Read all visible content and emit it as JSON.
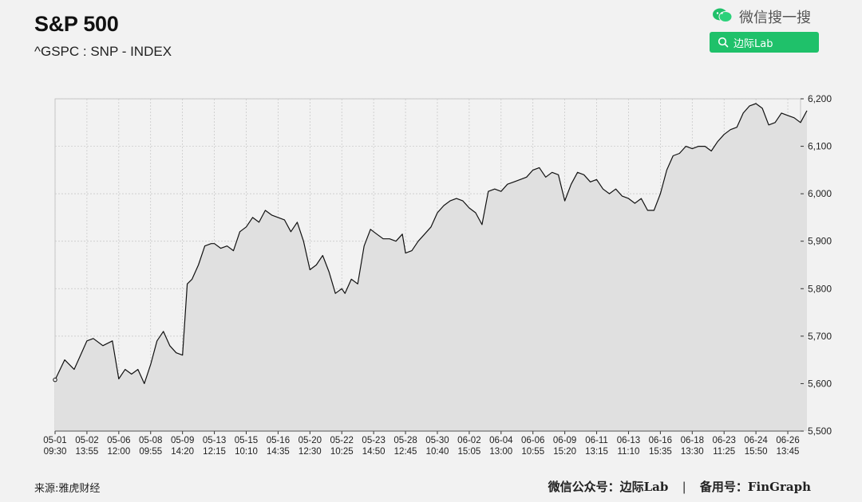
{
  "header": {
    "title": "S&P 500",
    "subtitle": "^GSPC : SNP - INDEX"
  },
  "wechat_badge": {
    "label": "微信搜一搜",
    "search_label": "边际Lab",
    "icon": "wechat-icon",
    "accent": "#1fc16a"
  },
  "footer": {
    "source": "来源:雅虎财经",
    "account": "微信公众号：边际Lab",
    "separator": "|",
    "backup": "备用号：FinGraph"
  },
  "chart_data": {
    "type": "area",
    "title": "S&P 500",
    "ylim": [
      5500,
      6200
    ],
    "yticks": [
      5500,
      5600,
      5700,
      5800,
      5900,
      6000,
      6100,
      6200
    ],
    "ytick_labels": [
      "5,500",
      "5,600",
      "5,700",
      "5,800",
      "5,900",
      "6,000",
      "6,100",
      "6,200"
    ],
    "x_tick_labels": [
      [
        "05-01",
        "09:30"
      ],
      [
        "05-02",
        "13:55"
      ],
      [
        "05-06",
        "12:00"
      ],
      [
        "05-08",
        "09:55"
      ],
      [
        "05-09",
        "14:20"
      ],
      [
        "05-13",
        "12:15"
      ],
      [
        "05-15",
        "10:10"
      ],
      [
        "05-16",
        "14:35"
      ],
      [
        "05-20",
        "12:30"
      ],
      [
        "05-22",
        "10:25"
      ],
      [
        "05-23",
        "14:50"
      ],
      [
        "05-28",
        "12:45"
      ],
      [
        "05-30",
        "10:40"
      ],
      [
        "06-02",
        "15:05"
      ],
      [
        "06-04",
        "13:00"
      ],
      [
        "06-06",
        "10:55"
      ],
      [
        "06-09",
        "15:20"
      ],
      [
        "06-11",
        "13:15"
      ],
      [
        "06-13",
        "11:10"
      ],
      [
        "06-16",
        "15:35"
      ],
      [
        "06-18",
        "13:30"
      ],
      [
        "06-23",
        "11:25"
      ],
      [
        "06-24",
        "15:50"
      ],
      [
        "06-26",
        "13:45"
      ]
    ],
    "x": [
      0,
      0.3,
      0.6,
      0.8,
      1.0,
      1.2,
      1.5,
      1.8,
      2.0,
      2.2,
      2.4,
      2.6,
      2.8,
      3.0,
      3.2,
      3.4,
      3.6,
      3.8,
      4.0,
      4.15,
      4.3,
      4.5,
      4.7,
      4.9,
      5.0,
      5.2,
      5.4,
      5.6,
      5.8,
      6.0,
      6.2,
      6.4,
      6.6,
      6.8,
      7.0,
      7.2,
      7.4,
      7.6,
      7.8,
      8.0,
      8.2,
      8.4,
      8.6,
      8.8,
      9.0,
      9.1,
      9.3,
      9.5,
      9.7,
      9.9,
      10.0,
      10.1,
      10.3,
      10.5,
      10.7,
      10.9,
      11.0,
      11.2,
      11.4,
      11.6,
      11.8,
      12.0,
      12.2,
      12.4,
      12.6,
      12.8,
      13.0,
      13.2,
      13.4,
      13.6,
      13.8,
      14.0,
      14.2,
      14.4,
      14.6,
      14.8,
      15.0,
      15.2,
      15.4,
      15.6,
      15.8,
      16.0,
      16.2,
      16.4,
      16.6,
      16.8,
      17.0,
      17.2,
      17.4,
      17.6,
      17.8,
      18.0,
      18.2,
      18.4,
      18.6,
      18.8,
      19.0,
      19.2,
      19.4,
      19.6,
      19.8,
      20.0,
      20.2,
      20.4,
      20.6,
      20.8,
      21.0,
      21.2,
      21.4,
      21.6,
      21.8,
      22.0,
      22.2,
      22.4,
      22.6,
      22.8,
      23.0,
      23.2,
      23.4,
      23.6
    ],
    "values": [
      5608,
      5650,
      5630,
      5660,
      5690,
      5695,
      5680,
      5690,
      5610,
      5630,
      5620,
      5630,
      5600,
      5640,
      5690,
      5710,
      5680,
      5665,
      5660,
      5810,
      5820,
      5850,
      5890,
      5895,
      5895,
      5885,
      5890,
      5880,
      5920,
      5930,
      5950,
      5940,
      5965,
      5955,
      5950,
      5945,
      5920,
      5940,
      5900,
      5840,
      5850,
      5870,
      5835,
      5790,
      5800,
      5790,
      5820,
      5810,
      5890,
      5925,
      5920,
      5915,
      5905,
      5905,
      5900,
      5915,
      5875,
      5880,
      5900,
      5915,
      5930,
      5960,
      5975,
      5985,
      5990,
      5985,
      5970,
      5960,
      5935,
      6005,
      6010,
      6005,
      6020,
      6025,
      6030,
      6035,
      6050,
      6055,
      6035,
      6045,
      6040,
      5985,
      6020,
      6045,
      6040,
      6025,
      6030,
      6010,
      6000,
      6010,
      5995,
      5990,
      5980,
      5990,
      5965,
      5965,
      6000,
      6050,
      6080,
      6085,
      6100,
      6095,
      6100,
      6100,
      6090,
      6110,
      6125,
      6135,
      6140,
      6170,
      6185,
      6190,
      6180,
      6145,
      6150,
      6170,
      6165,
      6160,
      6150,
      6175
    ],
    "grid": true,
    "y_axis_position": "right"
  }
}
